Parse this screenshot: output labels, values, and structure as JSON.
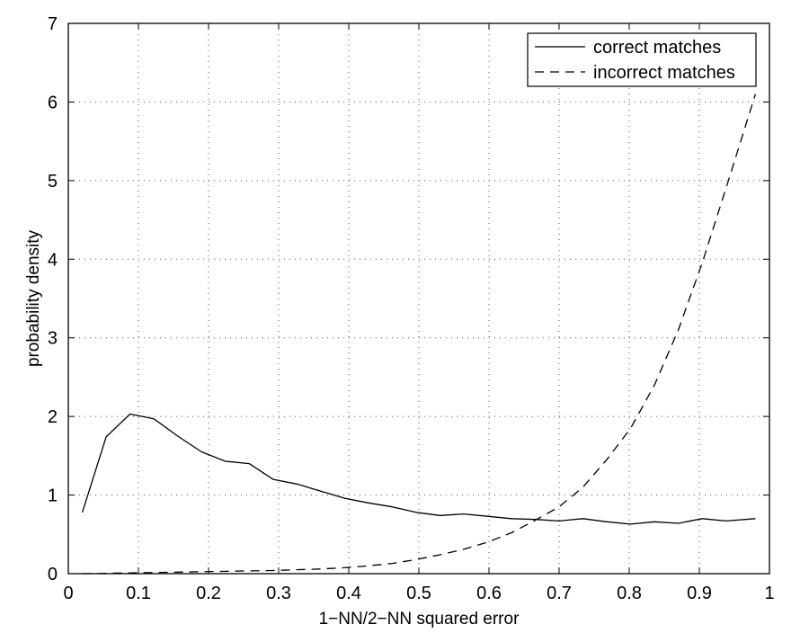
{
  "chart_data": {
    "type": "line",
    "title": "",
    "xlabel": "1−NN/2−NN squared error",
    "ylabel": "probability density",
    "xlim": [
      0,
      1
    ],
    "ylim": [
      0,
      7
    ],
    "xticks": [
      "0",
      "0.1",
      "0.2",
      "0.3",
      "0.4",
      "0.5",
      "0.6",
      "0.7",
      "0.8",
      "0.9",
      "1"
    ],
    "yticks": [
      "0",
      "1",
      "2",
      "3",
      "4",
      "5",
      "6",
      "7"
    ],
    "grid": true,
    "legend_position": "top-right",
    "series": [
      {
        "name": "correct matches",
        "style": "solid",
        "x": [
          0.02,
          0.054,
          0.088,
          0.122,
          0.156,
          0.19,
          0.224,
          0.258,
          0.292,
          0.326,
          0.36,
          0.394,
          0.428,
          0.462,
          0.496,
          0.53,
          0.564,
          0.598,
          0.632,
          0.666,
          0.7,
          0.734,
          0.768,
          0.802,
          0.836,
          0.87,
          0.904,
          0.938,
          0.98
        ],
        "y": [
          0.78,
          1.74,
          2.03,
          1.97,
          1.75,
          1.55,
          1.43,
          1.4,
          1.2,
          1.14,
          1.05,
          0.96,
          0.9,
          0.85,
          0.78,
          0.74,
          0.76,
          0.73,
          0.7,
          0.69,
          0.67,
          0.7,
          0.66,
          0.63,
          0.66,
          0.64,
          0.7,
          0.67,
          0.7
        ]
      },
      {
        "name": "incorrect matches",
        "style": "dashed",
        "x": [
          0.02,
          0.054,
          0.088,
          0.122,
          0.156,
          0.19,
          0.224,
          0.258,
          0.292,
          0.326,
          0.36,
          0.394,
          0.428,
          0.462,
          0.496,
          0.53,
          0.564,
          0.598,
          0.632,
          0.666,
          0.7,
          0.734,
          0.768,
          0.802,
          0.836,
          0.87,
          0.904,
          0.938,
          0.98
        ],
        "y": [
          0.0,
          0.005,
          0.01,
          0.015,
          0.02,
          0.025,
          0.03,
          0.035,
          0.04,
          0.05,
          0.06,
          0.075,
          0.1,
          0.13,
          0.18,
          0.24,
          0.31,
          0.4,
          0.52,
          0.68,
          0.85,
          1.1,
          1.45,
          1.85,
          2.4,
          3.1,
          3.95,
          4.9,
          6.1
        ]
      }
    ]
  }
}
